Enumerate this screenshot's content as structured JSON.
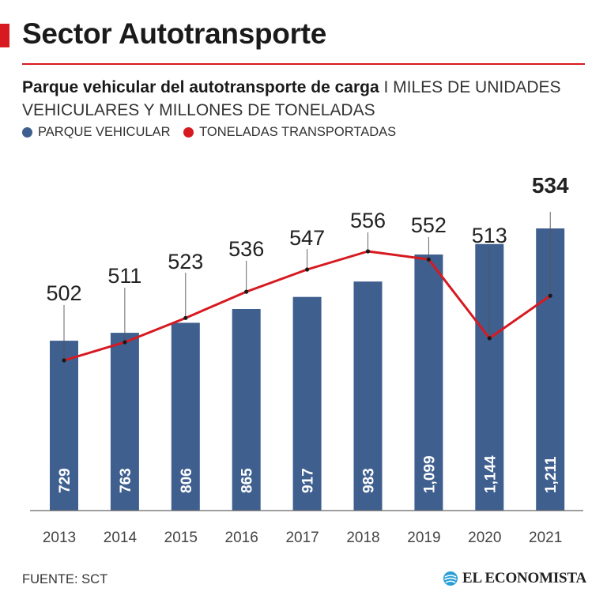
{
  "header": {
    "title": "Sector Autotransporte"
  },
  "chart_data": {
    "type": "bar",
    "title": "Parque vehicular del autotransporte de carga",
    "subtitle": "I MILES DE UNIDADES VEHICULARES Y MILLONES DE TONELADAS",
    "categories": [
      "2013",
      "2014",
      "2015",
      "2016",
      "2017",
      "2018",
      "2019",
      "2020",
      "2021"
    ],
    "series": [
      {
        "name": "PARQUE VEHICULAR",
        "type": "bar",
        "values": [
          729,
          763,
          806,
          865,
          917,
          983,
          1099,
          1144,
          1211
        ],
        "labels": [
          "729",
          "763",
          "806",
          "865",
          "917",
          "983",
          "1,099",
          "1,144",
          "1,211"
        ],
        "color": "#3f5f8f"
      },
      {
        "name": "TONELADAS TRANSPORTADAS",
        "type": "line",
        "values": [
          502,
          511,
          523,
          536,
          547,
          556,
          552,
          513,
          534
        ],
        "labels": [
          "502",
          "511",
          "523",
          "536",
          "547",
          "556",
          "552",
          "513",
          "534"
        ],
        "color": "#d71920"
      }
    ],
    "highlight": "2021",
    "grid": false,
    "legend_position": "top-left"
  },
  "footer": {
    "source": "FUENTE: SCT",
    "brand": "EL ECONOMISTA"
  },
  "colors": {
    "accent": "#d71920",
    "bar": "#3f5f8f",
    "line": "#d71920",
    "leader": "#555555"
  }
}
